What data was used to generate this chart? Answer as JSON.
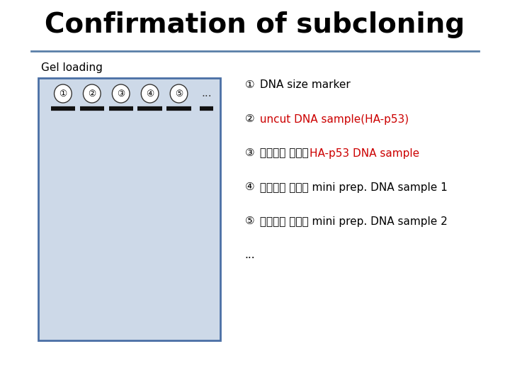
{
  "title": "Confirmation of subcloning",
  "title_fontsize": 28,
  "title_fontweight": "bold",
  "gel_label": "Gel loading",
  "gel_label_fontsize": 11,
  "bg_color": "#ffffff",
  "gel_bg_color": "#cdd9e8",
  "gel_border_color": "#4a6fa5",
  "lane_numbers": [
    "①",
    "②",
    "③",
    "④",
    "⑤"
  ],
  "lane_ellipsis": "...",
  "band_color": "#111111",
  "legend_items": [
    {
      "num": "①",
      "segments": [
        {
          "text": " DNA size marker",
          "color": "#000000",
          "bold": false,
          "italic": false
        }
      ]
    },
    {
      "num": "②",
      "segments": [
        {
          "text": " uncut DNA sample(HA-p53)",
          "color": "#cc0000",
          "bold": false,
          "italic": false
        }
      ]
    },
    {
      "num": "③",
      "segments": [
        {
          "text": " 제한효소 처리한 ",
          "color": "#000000",
          "bold": false,
          "italic": false
        },
        {
          "text": "HA-p53 DNA sample",
          "color": "#cc0000",
          "bold": false,
          "italic": false
        }
      ]
    },
    {
      "num": "④",
      "segments": [
        {
          "text": " 제한효소 처리한 mini prep. DNA sample 1",
          "color": "#000000",
          "bold": false,
          "italic": false
        }
      ]
    },
    {
      "num": "⑤",
      "segments": [
        {
          "text": " 제한효소 처리한 mini prep. DNA sample 2",
          "color": "#000000",
          "bold": false,
          "italic": false
        }
      ]
    }
  ],
  "legend_ellipsis": "...",
  "separator_color": "#5a7fa8",
  "separator_linewidth": 2.0,
  "legend_fontsize": 11,
  "num_fontsize": 11
}
